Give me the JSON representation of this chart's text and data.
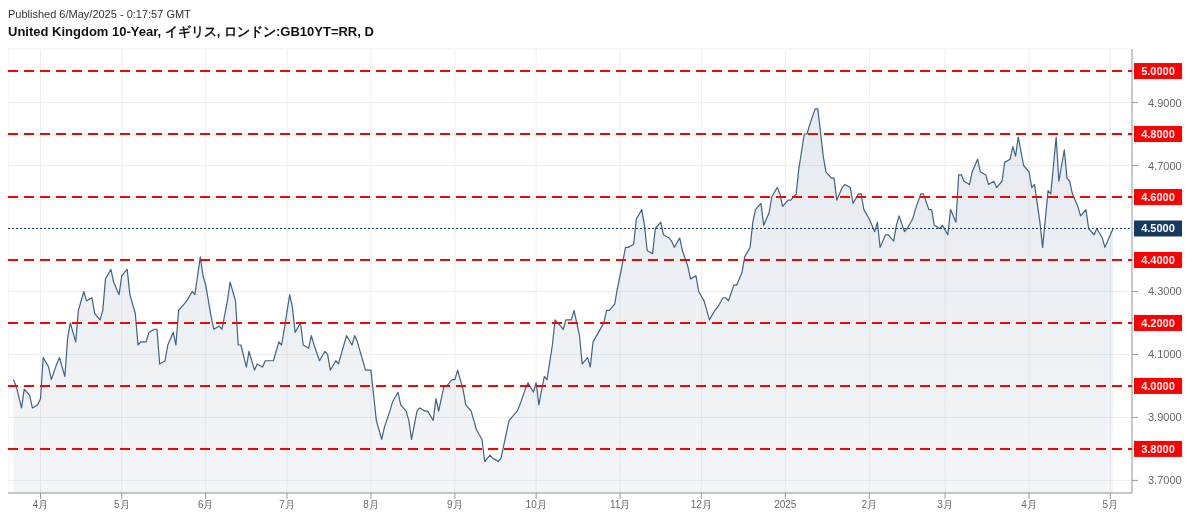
{
  "chart_data": {
    "type": "area",
    "subtitle": "Published 6/May/2025 - 0:17:57 GMT",
    "title": "United Kingdom 10-Year, イギリス, ロンドン:GB10YT=RR, D",
    "xlim": [
      "2024-03-20",
      "2025-05-09"
    ],
    "xticks": [
      {
        "value": "2024-04-01",
        "label": "4月"
      },
      {
        "value": "2024-05-01",
        "label": "5月"
      },
      {
        "value": "2024-06-01",
        "label": "6月"
      },
      {
        "value": "2024-07-01",
        "label": "7月"
      },
      {
        "value": "2024-08-01",
        "label": "8月"
      },
      {
        "value": "2024-09-01",
        "label": "9月"
      },
      {
        "value": "2024-10-01",
        "label": "10月"
      },
      {
        "value": "2024-11-01",
        "label": "11月"
      },
      {
        "value": "2024-12-01",
        "label": "12月"
      },
      {
        "value": "2025-01-01",
        "label": "2025"
      },
      {
        "value": "2025-02-01",
        "label": "2月"
      },
      {
        "value": "2025-03-01",
        "label": "3月"
      },
      {
        "value": "2025-04-01",
        "label": "4月"
      },
      {
        "value": "2025-05-01",
        "label": "5月"
      }
    ],
    "ylim": [
      3.66,
      5.07
    ],
    "yticks": [
      {
        "value": 3.7,
        "label": "3.7000"
      },
      {
        "value": 3.9,
        "label": "3.9000"
      },
      {
        "value": 4.1,
        "label": "4.1000"
      },
      {
        "value": 4.3,
        "label": "4.3000"
      },
      {
        "value": 4.7,
        "label": "4.7000"
      },
      {
        "value": 4.9,
        "label": "4.9000"
      }
    ],
    "grid": true,
    "legend": false,
    "ref_lines": [
      {
        "axis": "y",
        "value": 5.0,
        "label": "5.0000",
        "color": "#ff0000",
        "line_style": "dashed"
      },
      {
        "axis": "y",
        "value": 4.8,
        "label": "4.8000",
        "color": "#ff0000",
        "line_style": "dashed"
      },
      {
        "axis": "y",
        "value": 4.6,
        "label": "4.6000",
        "color": "#ff0000",
        "line_style": "dashed"
      },
      {
        "axis": "y",
        "value": 4.5,
        "label": "4.5000",
        "color": "#163a5f",
        "line_style": "dotted"
      },
      {
        "axis": "y",
        "value": 4.4,
        "label": "4.4000",
        "color": "#ff0000",
        "line_style": "dashed"
      },
      {
        "axis": "y",
        "value": 4.2,
        "label": "4.2000",
        "color": "#ff0000",
        "line_style": "dashed"
      },
      {
        "axis": "y",
        "value": 4.0,
        "label": "4.0000",
        "color": "#ff0000",
        "line_style": "dashed"
      },
      {
        "axis": "y",
        "value": 3.8,
        "label": "3.8000",
        "color": "#ff0000",
        "line_style": "dashed"
      }
    ],
    "series": [
      {
        "color": "#3f6285",
        "x": [
          "2024-03-22",
          "2024-03-23",
          "2024-03-25",
          "2024-03-26",
          "2024-03-28",
          "2024-03-29",
          "2024-03-31",
          "2024-04-01",
          "2024-04-02",
          "2024-04-04",
          "2024-04-05",
          "2024-04-07",
          "2024-04-08",
          "2024-04-10",
          "2024-04-11",
          "2024-04-12",
          "2024-04-14",
          "2024-04-15",
          "2024-04-17",
          "2024-04-18",
          "2024-04-20",
          "2024-04-21",
          "2024-04-23",
          "2024-04-24",
          "2024-04-25",
          "2024-04-27",
          "2024-04-28",
          "2024-04-30",
          "2024-05-01",
          "2024-05-03",
          "2024-05-04",
          "2024-05-06",
          "2024-05-07",
          "2024-05-08",
          "2024-05-10",
          "2024-05-11",
          "2024-05-13",
          "2024-05-14",
          "2024-05-15",
          "2024-05-17",
          "2024-05-18",
          "2024-05-20",
          "2024-05-21",
          "2024-05-22",
          "2024-05-24",
          "2024-05-25",
          "2024-05-27",
          "2024-05-28",
          "2024-05-30",
          "2024-05-31",
          "2024-06-01",
          "2024-06-03",
          "2024-06-04",
          "2024-06-06",
          "2024-06-07",
          "2024-06-09",
          "2024-06-10",
          "2024-06-12",
          "2024-06-13",
          "2024-06-14",
          "2024-06-16",
          "2024-06-17",
          "2024-06-19",
          "2024-06-20",
          "2024-06-22",
          "2024-06-23",
          "2024-06-25",
          "2024-06-26",
          "2024-06-28",
          "2024-06-29",
          "2024-06-30",
          "2024-07-02",
          "2024-07-03",
          "2024-07-04",
          "2024-07-06",
          "2024-07-07",
          "2024-07-09",
          "2024-07-10",
          "2024-07-11",
          "2024-07-13",
          "2024-07-15",
          "2024-07-16",
          "2024-07-17",
          "2024-07-19",
          "2024-07-20",
          "2024-07-22",
          "2024-07-23",
          "2024-07-25",
          "2024-07-26",
          "2024-07-27",
          "2024-07-28",
          "2024-07-30",
          "2024-08-01",
          "2024-08-02",
          "2024-08-03",
          "2024-08-05",
          "2024-08-06",
          "2024-08-08",
          "2024-08-09",
          "2024-08-11",
          "2024-08-12",
          "2024-08-14",
          "2024-08-15",
          "2024-08-16",
          "2024-08-18",
          "2024-08-19",
          "2024-08-21",
          "2024-08-22",
          "2024-08-24",
          "2024-08-25",
          "2024-08-26",
          "2024-08-28",
          "2024-08-29",
          "2024-08-31",
          "2024-09-01",
          "2024-09-02",
          "2024-09-04",
          "2024-09-05",
          "2024-09-07",
          "2024-09-08",
          "2024-09-09",
          "2024-09-11",
          "2024-09-12",
          "2024-09-14",
          "2024-09-15",
          "2024-09-17",
          "2024-09-18",
          "2024-09-20",
          "2024-09-21",
          "2024-09-22",
          "2024-09-24",
          "2024-09-25",
          "2024-09-27",
          "2024-09-28",
          "2024-09-30",
          "2024-10-01",
          "2024-10-02",
          "2024-10-04",
          "2024-10-05",
          "2024-10-07",
          "2024-10-08",
          "2024-10-10",
          "2024-10-11",
          "2024-10-12",
          "2024-10-14",
          "2024-10-15",
          "2024-10-17",
          "2024-10-18",
          "2024-10-20",
          "2024-10-21",
          "2024-10-22",
          "2024-10-24",
          "2024-10-26",
          "2024-10-27",
          "2024-10-28",
          "2024-10-30",
          "2024-10-31",
          "2024-11-01",
          "2024-11-03",
          "2024-11-04",
          "2024-11-06",
          "2024-11-07",
          "2024-11-09",
          "2024-11-10",
          "2024-11-11",
          "2024-11-13",
          "2024-11-14",
          "2024-11-16",
          "2024-11-17",
          "2024-11-19",
          "2024-11-20",
          "2024-11-21",
          "2024-11-23",
          "2024-11-24",
          "2024-11-26",
          "2024-11-27",
          "2024-11-29",
          "2024-11-30",
          "2024-12-02",
          "2024-12-03",
          "2024-12-04",
          "2024-12-06",
          "2024-12-07",
          "2024-12-09",
          "2024-12-10",
          "2024-12-11",
          "2024-12-13",
          "2024-12-14",
          "2024-12-16",
          "2024-12-17",
          "2024-12-19",
          "2024-12-20",
          "2024-12-21",
          "2024-12-23",
          "2024-12-24",
          "2024-12-26",
          "2024-12-27",
          "2024-12-29",
          "2024-12-30",
          "2024-12-31",
          "2025-01-02",
          "2025-01-03",
          "2025-01-05",
          "2025-01-06",
          "2025-01-08",
          "2025-01-09",
          "2025-01-10",
          "2025-01-12",
          "2025-01-13",
          "2025-01-15",
          "2025-01-16",
          "2025-01-18",
          "2025-01-19",
          "2025-01-20",
          "2025-01-22",
          "2025-01-23",
          "2025-01-25",
          "2025-01-26",
          "2025-01-28",
          "2025-01-29",
          "2025-01-30",
          "2025-02-01",
          "2025-02-03",
          "2025-02-04",
          "2025-02-05",
          "2025-02-07",
          "2025-02-08",
          "2025-02-10",
          "2025-02-11",
          "2025-02-12",
          "2025-02-14",
          "2025-02-15",
          "2025-02-17",
          "2025-02-18",
          "2025-02-20",
          "2025-02-21",
          "2025-02-23",
          "2025-02-24",
          "2025-02-25",
          "2025-02-27",
          "2025-02-28",
          "2025-03-02",
          "2025-03-03",
          "2025-03-05",
          "2025-03-06",
          "2025-03-07",
          "2025-03-08",
          "2025-03-10",
          "2025-03-11",
          "2025-03-13",
          "2025-03-14",
          "2025-03-16",
          "2025-03-17",
          "2025-03-19",
          "2025-03-20",
          "2025-03-22",
          "2025-03-23",
          "2025-03-25",
          "2025-03-26",
          "2025-03-27",
          "2025-03-28",
          "2025-03-30",
          "2025-04-01",
          "2025-04-02",
          "2025-04-03",
          "2025-04-05",
          "2025-04-06",
          "2025-04-08",
          "2025-04-09",
          "2025-04-11",
          "2025-04-12",
          "2025-04-14",
          "2025-04-15",
          "2025-04-16",
          "2025-04-17",
          "2025-04-19",
          "2025-04-20",
          "2025-04-22",
          "2025-04-23",
          "2025-04-25",
          "2025-04-26",
          "2025-04-28",
          "2025-04-29",
          "2025-05-01",
          "2025-05-02"
        ],
        "values": [
          4.02,
          4.0,
          3.93,
          3.99,
          3.97,
          3.93,
          3.94,
          3.96,
          4.09,
          4.06,
          4.02,
          4.07,
          4.09,
          4.03,
          4.15,
          4.2,
          4.14,
          4.24,
          4.3,
          4.27,
          4.28,
          4.23,
          4.21,
          4.24,
          4.34,
          4.37,
          4.33,
          4.29,
          4.35,
          4.37,
          4.29,
          4.23,
          4.13,
          4.14,
          4.14,
          4.17,
          4.18,
          4.18,
          4.07,
          4.08,
          4.13,
          4.17,
          4.13,
          4.24,
          4.26,
          4.27,
          4.3,
          4.29,
          4.41,
          4.35,
          4.32,
          4.22,
          4.18,
          4.19,
          4.18,
          4.27,
          4.33,
          4.27,
          4.13,
          4.13,
          4.06,
          4.11,
          4.05,
          4.07,
          4.06,
          4.08,
          4.08,
          4.08,
          4.14,
          4.13,
          4.18,
          4.29,
          4.25,
          4.17,
          4.2,
          4.13,
          4.12,
          4.16,
          4.13,
          4.08,
          4.11,
          4.1,
          4.05,
          4.08,
          4.07,
          4.13,
          4.16,
          4.13,
          4.16,
          4.14,
          4.11,
          4.05,
          4.05,
          3.97,
          3.89,
          3.83,
          3.87,
          3.92,
          3.95,
          3.98,
          3.94,
          3.92,
          3.89,
          3.83,
          3.92,
          3.93,
          3.92,
          3.92,
          3.89,
          3.96,
          3.92,
          4.0,
          4.0,
          4.02,
          4.02,
          4.05,
          3.99,
          3.94,
          3.92,
          3.89,
          3.86,
          3.83,
          3.76,
          3.78,
          3.77,
          3.76,
          3.77,
          3.85,
          3.89,
          3.9,
          3.92,
          3.94,
          3.99,
          4.01,
          3.98,
          4.01,
          3.94,
          4.03,
          4.02,
          4.13,
          4.21,
          4.19,
          4.18,
          4.21,
          4.21,
          4.24,
          4.16,
          4.07,
          4.09,
          4.06,
          4.14,
          4.17,
          4.2,
          4.24,
          4.24,
          4.26,
          4.31,
          4.35,
          4.44,
          4.44,
          4.45,
          4.53,
          4.56,
          4.51,
          4.43,
          4.42,
          4.5,
          4.52,
          4.48,
          4.47,
          4.46,
          4.44,
          4.47,
          4.43,
          4.38,
          4.34,
          4.35,
          4.3,
          4.27,
          4.24,
          4.21,
          4.24,
          4.25,
          4.28,
          4.28,
          4.27,
          4.32,
          4.32,
          4.36,
          4.41,
          4.44,
          4.52,
          4.56,
          4.58,
          4.51,
          4.55,
          4.6,
          4.63,
          4.61,
          4.57,
          4.59,
          4.59,
          4.61,
          4.69,
          4.8,
          4.8,
          4.83,
          4.88,
          4.88,
          4.73,
          4.68,
          4.66,
          4.66,
          4.59,
          4.63,
          4.64,
          4.63,
          4.58,
          4.61,
          4.61,
          4.56,
          4.53,
          4.49,
          4.52,
          4.44,
          4.48,
          4.48,
          4.46,
          4.51,
          4.54,
          4.49,
          4.5,
          4.53,
          4.56,
          4.61,
          4.61,
          4.56,
          4.56,
          4.51,
          4.5,
          4.51,
          4.48,
          4.56,
          4.52,
          4.67,
          4.67,
          4.65,
          4.64,
          4.68,
          4.72,
          4.68,
          4.67,
          4.64,
          4.65,
          4.63,
          4.65,
          4.71,
          4.72,
          4.76,
          4.73,
          4.79,
          4.7,
          4.68,
          4.63,
          4.64,
          4.52,
          4.44,
          4.62,
          4.61,
          4.79,
          4.65,
          4.75,
          4.66,
          4.65,
          4.61,
          4.57,
          4.54,
          4.56,
          4.5,
          4.48,
          4.5,
          4.47,
          4.44,
          4.48,
          4.5
        ]
      }
    ]
  }
}
